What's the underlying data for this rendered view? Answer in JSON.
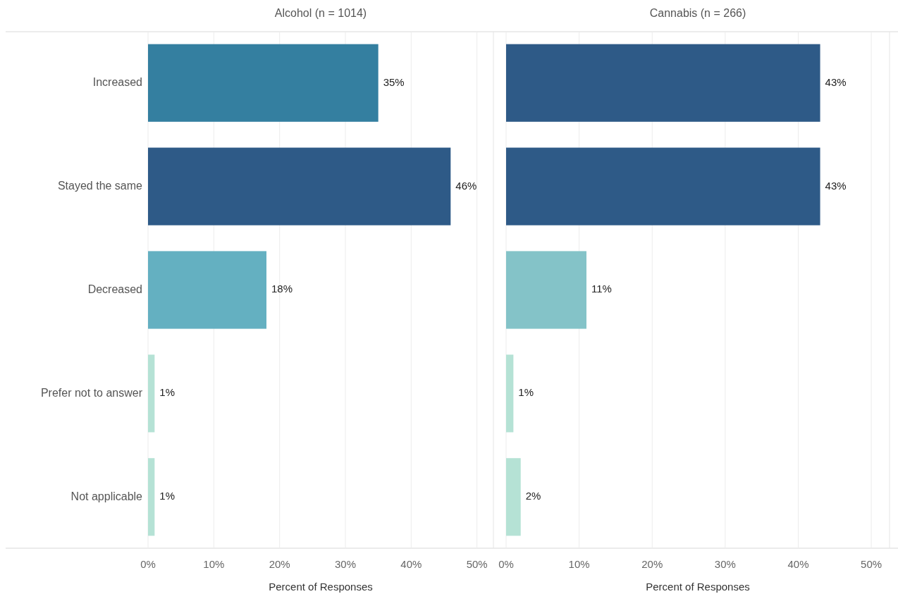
{
  "chart_data": [
    {
      "type": "bar",
      "orientation": "horizontal",
      "title": "Alcohol (n = 1014)",
      "xlabel": "Percent of Responses",
      "categories": [
        "Increased",
        "Stayed the same",
        "Decreased",
        "Prefer not to answer",
        "Not applicable"
      ],
      "values": [
        35,
        46,
        18,
        1,
        1
      ],
      "value_labels": [
        "35%",
        "46%",
        "18%",
        "1%",
        "1%"
      ],
      "colors": [
        "#347fa0",
        "#2e5a87",
        "#64b0c1",
        "#b5e2d5",
        "#b5e2d5"
      ],
      "xlim": [
        0,
        52.5
      ],
      "xticks": [
        {
          "value": 0,
          "label": "0%"
        },
        {
          "value": 10,
          "label": "10%"
        },
        {
          "value": 20,
          "label": "20%"
        },
        {
          "value": 30,
          "label": "30%"
        },
        {
          "value": 40,
          "label": "40%"
        },
        {
          "value": 50,
          "label": "50%"
        }
      ],
      "grid": "x"
    },
    {
      "type": "bar",
      "orientation": "horizontal",
      "title": "Cannabis (n = 266)",
      "xlabel": "Percent of Responses",
      "categories": [
        null,
        null,
        null,
        null,
        null
      ],
      "values": [
        43,
        43,
        11,
        1,
        2
      ],
      "value_labels": [
        "43%",
        "43%",
        "11%",
        "1%",
        "2%"
      ],
      "colors": [
        "#2e5a87",
        "#2e5a87",
        "#84c3c8",
        "#b5e2d5",
        "#b5e2d5"
      ],
      "xlim": [
        0,
        52.5
      ],
      "xticks": [
        {
          "value": 0,
          "label": "0%"
        },
        {
          "value": 10,
          "label": "10%"
        },
        {
          "value": 20,
          "label": "20%"
        },
        {
          "value": 30,
          "label": "30%"
        },
        {
          "value": 40,
          "label": "40%"
        },
        {
          "value": 50,
          "label": "50%"
        }
      ],
      "grid": "x",
      "tick_labels": "x"
    }
  ]
}
